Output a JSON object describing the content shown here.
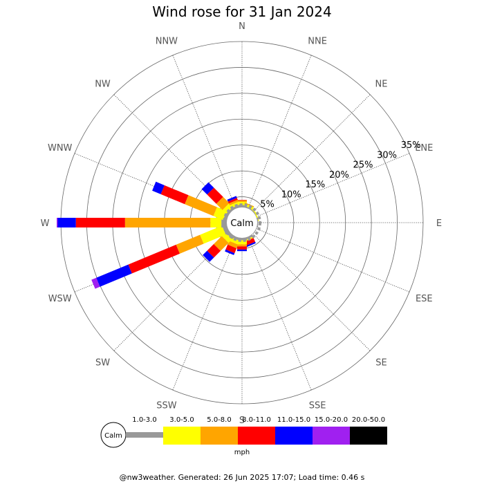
{
  "chart_data": {
    "type": "wind-rose",
    "title": "Wind rose for 31 Jan 2024",
    "directions": [
      "N",
      "NNE",
      "NE",
      "ENE",
      "E",
      "ESE",
      "SE",
      "SSE",
      "S",
      "SSW",
      "SW",
      "WSW",
      "W",
      "WNW",
      "NW",
      "NNW"
    ],
    "radial_ticks": [
      "5%",
      "10%",
      "15%",
      "20%",
      "25%",
      "30%",
      "35%"
    ],
    "radial_values": [
      5,
      10,
      15,
      20,
      25,
      30,
      35
    ],
    "rmax": 35,
    "calm_label": "Calm",
    "unit": "mph",
    "bins": [
      {
        "label": "1.0-3.0",
        "color": "#999999"
      },
      {
        "label": "3.0-5.0",
        "color": "#ffff00"
      },
      {
        "label": "5.0-8.0",
        "color": "#ffa500"
      },
      {
        "label": "8.0-11.0",
        "color": "#ff0000"
      },
      {
        "label": "11.0-15.0",
        "color": "#0000ff"
      },
      {
        "label": "15.0-20.0",
        "color": "#a020f0"
      },
      {
        "label": "20.0-50.0",
        "color": "#000000"
      }
    ],
    "series": [
      {
        "direction": "N",
        "cumulative": [
          0.8,
          1.4,
          1.7,
          1.8
        ]
      },
      {
        "direction": "NNE",
        "cumulative": [
          0.6,
          1.0,
          1.2
        ]
      },
      {
        "direction": "NE",
        "cumulative": [
          0.5,
          0.7
        ]
      },
      {
        "direction": "ENE",
        "cumulative": [
          0.4,
          0.6
        ]
      },
      {
        "direction": "E",
        "cumulative": [
          0.5
        ]
      },
      {
        "direction": "ESE",
        "cumulative": [
          0.4
        ]
      },
      {
        "direction": "SE",
        "cumulative": [
          0.4
        ]
      },
      {
        "direction": "SSE",
        "cumulative": [
          0.7,
          0.9,
          1.0,
          1.8,
          2.1
        ]
      },
      {
        "direction": "S",
        "cumulative": [
          0.8,
          1.6,
          2.0,
          2.6,
          2.9
        ]
      },
      {
        "direction": "SSW",
        "cumulative": [
          0.8,
          1.6,
          2.4,
          3.4,
          3.8
        ]
      },
      {
        "direction": "SW",
        "cumulative": [
          1.0,
          2.0,
          4.2,
          6.0,
          7.2
        ]
      },
      {
        "direction": "WSW",
        "cumulative": [
          1.2,
          5.8,
          10.8,
          20.8,
          27.5,
          28.5
        ]
      },
      {
        "direction": "W",
        "cumulative": [
          1.4,
          3.5,
          20.0,
          29.5,
          33.0,
          33.2
        ]
      },
      {
        "direction": "WNW",
        "cumulative": [
          1.0,
          3.0,
          9.0,
          14.0,
          15.8
        ]
      },
      {
        "direction": "NW",
        "cumulative": [
          0.8,
          1.8,
          3.5,
          6.0,
          7.5
        ]
      },
      {
        "direction": "NNW",
        "cumulative": [
          0.8,
          1.4,
          1.8,
          2.2,
          2.6
        ]
      }
    ]
  },
  "footer": "@nw3weather. Generated: 26 Jun 2025 17:07; Load time: 0.46 s"
}
